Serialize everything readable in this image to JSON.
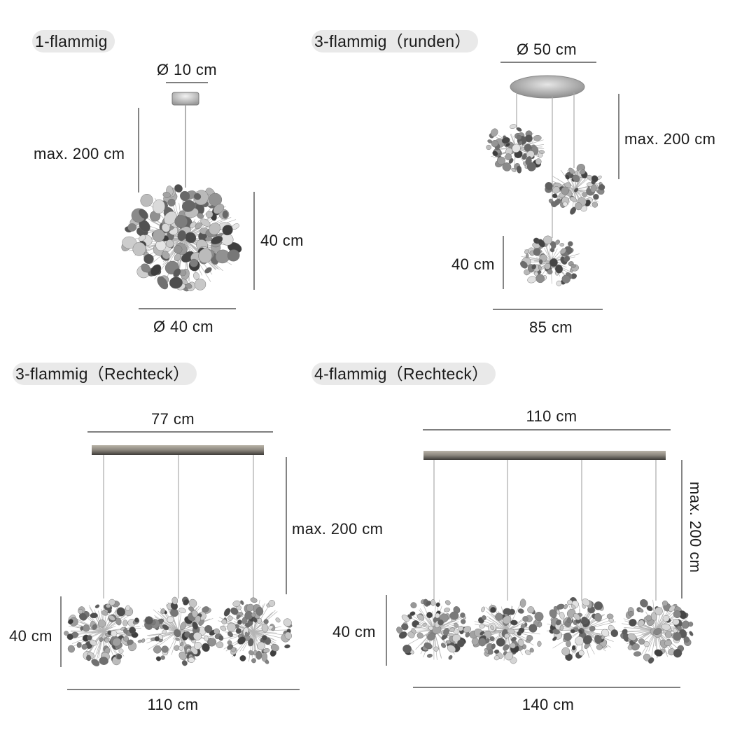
{
  "sections": [
    {
      "title": "1-flammig",
      "dimensions": {
        "canopy": "Ø 10 cm",
        "height": "max. 200 cm",
        "shade_height": "40 cm",
        "shade_diameter": "Ø 40 cm"
      }
    },
    {
      "title": "3-flammig（runden）",
      "dimensions": {
        "canopy": "Ø 50 cm",
        "height": "max. 200 cm",
        "shade_height": "40 cm",
        "width": "85 cm"
      }
    },
    {
      "title": "3-flammig（Rechteck）",
      "dimensions": {
        "canopy": "77 cm",
        "height": "max. 200 cm",
        "shade_height": "40 cm",
        "width": "110 cm"
      }
    },
    {
      "title": "4-flammig（Rechteck）",
      "dimensions": {
        "canopy": "110 cm",
        "height": "max. 200 cm",
        "shade_height": "40 cm",
        "width": "140 cm"
      }
    }
  ],
  "colors": {
    "pill_bg": "#e9e9e9",
    "line": "#333333",
    "metal": "#7a7a7a"
  }
}
